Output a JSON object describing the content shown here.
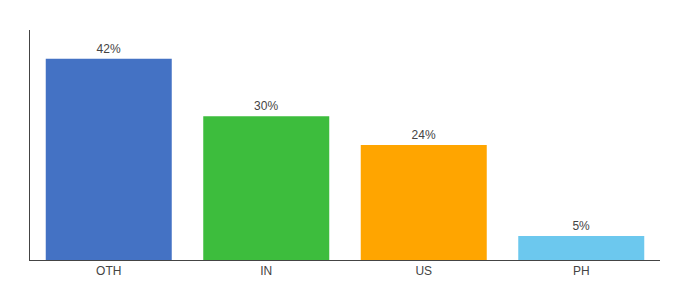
{
  "chart_data": {
    "type": "bar",
    "categories": [
      "OTH",
      "IN",
      "US",
      "PH"
    ],
    "values": [
      42,
      30,
      24,
      5
    ],
    "value_labels": [
      "42%",
      "30%",
      "24%",
      "5%"
    ],
    "colors": [
      "#4472C4",
      "#3DBD3D",
      "#FFA500",
      "#6CC8EE"
    ],
    "ylim": [
      0,
      48
    ],
    "grid": false,
    "data_labels": true,
    "tick_labels": "x"
  }
}
